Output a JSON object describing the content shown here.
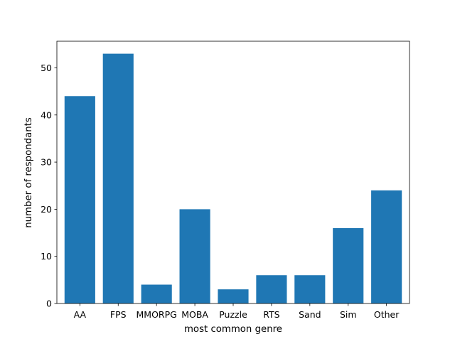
{
  "chart_data": {
    "type": "bar",
    "title": "",
    "xlabel": "most common genre",
    "ylabel": "number of respondants",
    "categories": [
      "AA",
      "FPS",
      "MMORPG",
      "MOBA",
      "Puzzle",
      "RTS",
      "Sand",
      "Sim",
      "Other"
    ],
    "values": [
      44,
      53,
      4,
      20,
      3,
      6,
      6,
      16,
      24
    ],
    "ylim": [
      0,
      55.65
    ],
    "yticks": [
      0,
      10,
      20,
      30,
      40,
      50
    ],
    "grid": false,
    "legend": null,
    "bar_color": "#1f77b4"
  }
}
